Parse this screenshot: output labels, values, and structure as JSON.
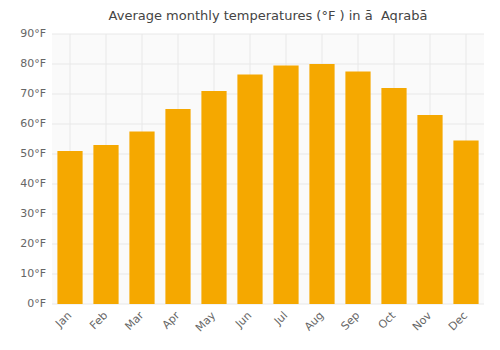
{
  "chart_data": {
    "type": "bar",
    "title": "Average monthly temperatures (°F ) in ā  Aqrabā",
    "categories": [
      "Jan",
      "Feb",
      "Mar",
      "Apr",
      "May",
      "Jun",
      "Jul",
      "Aug",
      "Sep",
      "Oct",
      "Nov",
      "Dec"
    ],
    "values": [
      51,
      53,
      57.5,
      65,
      71,
      76.5,
      79.5,
      80,
      77.5,
      72,
      63,
      54.5
    ],
    "color": "#F5A800",
    "ylim": [
      0,
      90
    ],
    "yticks": [
      {
        "value": 0,
        "label": "0°F"
      },
      {
        "value": 10,
        "label": "10°F"
      },
      {
        "value": 20,
        "label": "20°F"
      },
      {
        "value": 30,
        "label": "30°F"
      },
      {
        "value": 40,
        "label": "40°F"
      },
      {
        "value": 50,
        "label": "50°F"
      },
      {
        "value": 60,
        "label": "60°F"
      },
      {
        "value": 70,
        "label": "70°F"
      },
      {
        "value": 80,
        "label": "80°F"
      },
      {
        "value": 90,
        "label": "90°F"
      }
    ],
    "grid": true
  }
}
